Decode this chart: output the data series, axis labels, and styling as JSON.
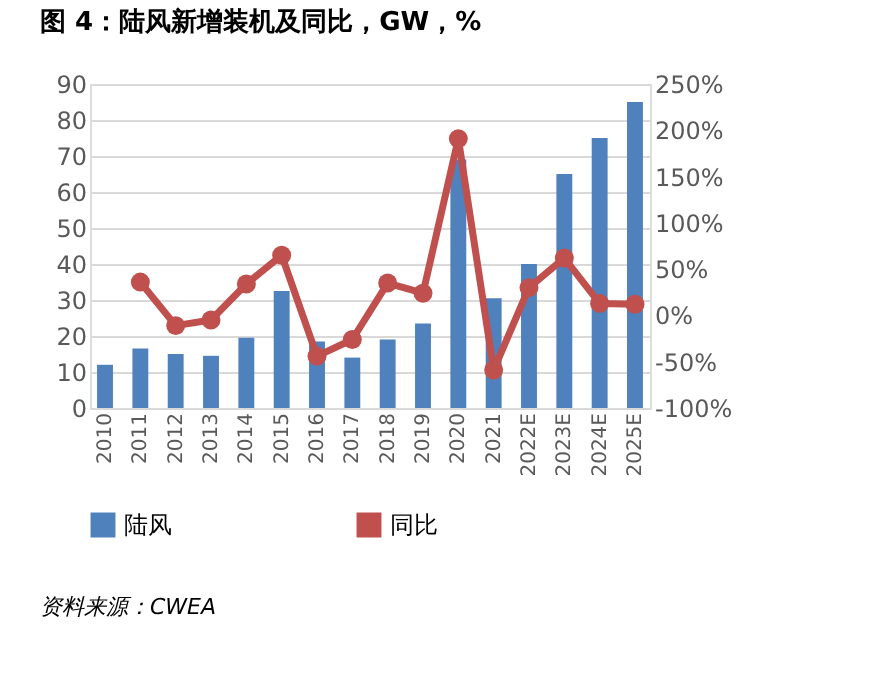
{
  "chart_data": {
    "type": "bar",
    "title": "图 4：陆风新增装机及同比，GW，%",
    "categories": [
      "2010",
      "2011",
      "2012",
      "2013",
      "2014",
      "2015",
      "2016",
      "2017",
      "2018",
      "2019",
      "2020",
      "2021",
      "2022E",
      "2023E",
      "2024E",
      "2025E"
    ],
    "series": [
      {
        "name": "陆风",
        "color": "#4f81bd",
        "values": [
          12,
          16.5,
          15,
          14.5,
          19.5,
          32.5,
          18.5,
          14,
          19,
          23.5,
          69,
          30.5,
          40,
          65,
          75,
          85
        ]
      },
      {
        "name": "同比",
        "type": "line",
        "axis": "y2",
        "color": "#c0504d",
        "marker": "circle",
        "values": [
          null,
          36,
          -11,
          -5,
          34,
          65,
          -44,
          -26,
          35,
          24,
          191,
          -59,
          30,
          62,
          13,
          12
        ]
      }
    ],
    "ylim": [
      0,
      90
    ],
    "yticks": [
      0,
      10,
      20,
      30,
      40,
      50,
      60,
      70,
      80,
      90
    ],
    "y2lim": [
      -100,
      250
    ],
    "y2ticks": [
      {
        "value": -100,
        "label": "-100%"
      },
      {
        "value": -50,
        "label": "-50%"
      },
      {
        "value": 0,
        "label": "0%"
      },
      {
        "value": 50,
        "label": "50%"
      },
      {
        "value": 100,
        "label": "100%"
      },
      {
        "value": 150,
        "label": "150%"
      },
      {
        "value": 200,
        "label": "200%"
      },
      {
        "value": 250,
        "label": "250%"
      }
    ],
    "grid": "y",
    "legend": "bottom",
    "annotations": [
      "资料来源：CWEA"
    ]
  }
}
